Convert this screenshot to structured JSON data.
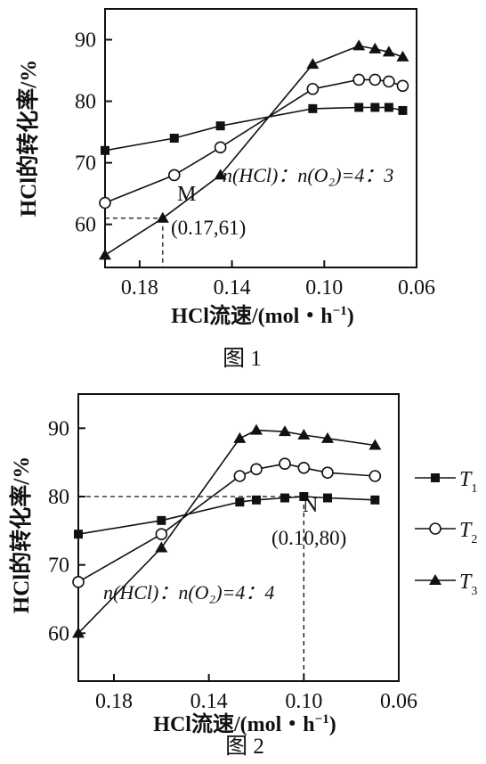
{
  "charts": [
    {
      "caption": "图 1",
      "ylabel": "HCl的转化率/%",
      "xlabel_prefix": "HCl流速/(mol・h",
      "xlabel_sup": "−1",
      "xlabel_suffix": ")",
      "ratio_label": "n(HCl)：n(O₂)=4：3",
      "point_label": "M",
      "point_coord": "(0.17,61)"
    },
    {
      "caption": "图 2",
      "ylabel": "HCl的转化率/%",
      "xlabel_prefix": "HCl流速/(mol・h",
      "xlabel_sup": "−1",
      "xlabel_suffix": ")",
      "ratio_label": "n(HCl)：n(O₂)=4：4",
      "point_label": "N",
      "point_coord": "(0.10,80)"
    }
  ],
  "legend": [
    {
      "label": "T",
      "sub": "1",
      "marker": "square"
    },
    {
      "label": "T",
      "sub": "2",
      "marker": "circle"
    },
    {
      "label": "T",
      "sub": "3",
      "marker": "triangle"
    }
  ],
  "chart_data": [
    {
      "type": "line",
      "title": "图 1",
      "xlabel": "HCl流速/(mol・h⁻¹)",
      "ylabel": "HCl的转化率/%",
      "x_reversed": true,
      "xlim": [
        0.195,
        0.06
      ],
      "ylim": [
        53,
        95
      ],
      "xticks": [
        0.18,
        0.14,
        0.1,
        0.06
      ],
      "yticks": [
        60,
        70,
        80,
        90
      ],
      "series": [
        {
          "name": "T1",
          "marker": "square",
          "x": [
            0.195,
            0.165,
            0.145,
            0.105,
            0.085,
            0.078,
            0.072,
            0.066
          ],
          "y": [
            72,
            74,
            76,
            78.8,
            79,
            79,
            79,
            78.5
          ]
        },
        {
          "name": "T2",
          "marker": "circle",
          "x": [
            0.195,
            0.165,
            0.145,
            0.105,
            0.085,
            0.078,
            0.072,
            0.066
          ],
          "y": [
            63.5,
            68,
            72.5,
            82,
            83.5,
            83.5,
            83.2,
            82.5
          ]
        },
        {
          "name": "T3",
          "marker": "triangle",
          "x": [
            0.195,
            0.17,
            0.145,
            0.105,
            0.085,
            0.078,
            0.072,
            0.066
          ],
          "y": [
            55,
            61,
            68,
            86,
            89,
            88.5,
            88,
            87.2
          ]
        }
      ],
      "annotation": {
        "label": "M",
        "x": 0.17,
        "y": 61
      }
    },
    {
      "type": "line",
      "title": "图 2",
      "xlabel": "HCl流速/(mol・h⁻¹)",
      "ylabel": "HCl的转化率/%",
      "x_reversed": true,
      "xlim": [
        0.195,
        0.06
      ],
      "ylim": [
        53,
        95
      ],
      "xticks": [
        0.18,
        0.14,
        0.1,
        0.06
      ],
      "yticks": [
        60,
        70,
        80,
        90
      ],
      "series": [
        {
          "name": "T1",
          "marker": "square",
          "x": [
            0.195,
            0.16,
            0.127,
            0.12,
            0.108,
            0.1,
            0.09,
            0.07
          ],
          "y": [
            74.5,
            76.5,
            79.2,
            79.5,
            79.8,
            80,
            79.8,
            79.5
          ]
        },
        {
          "name": "T2",
          "marker": "circle",
          "x": [
            0.195,
            0.16,
            0.127,
            0.12,
            0.108,
            0.1,
            0.09,
            0.07
          ],
          "y": [
            67.5,
            74.5,
            83,
            84,
            84.8,
            84.2,
            83.5,
            83
          ]
        },
        {
          "name": "T3",
          "marker": "triangle",
          "x": [
            0.195,
            0.16,
            0.127,
            0.12,
            0.108,
            0.1,
            0.09,
            0.07
          ],
          "y": [
            60,
            72.5,
            88.5,
            89.7,
            89.5,
            89,
            88.5,
            87.5
          ]
        }
      ],
      "annotation": {
        "label": "N",
        "x": 0.1,
        "y": 80
      }
    }
  ]
}
